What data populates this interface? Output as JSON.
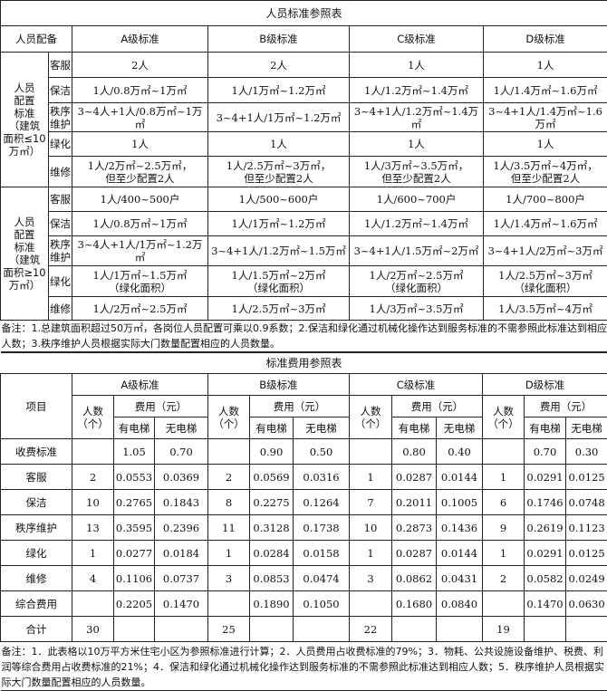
{
  "staff_table": {
    "title": "人员标准参照表",
    "header": [
      "人员配备",
      "A级标准",
      "B级标准",
      "C级标准",
      "D级标准"
    ],
    "groups": [
      {
        "label": "人员\n配置\n标准\n（建筑\n面积≤10\n万㎡）",
        "rows": [
          {
            "role": "客服",
            "values": [
              "2人",
              "2人",
              "1人",
              "1人"
            ]
          },
          {
            "role": "保洁",
            "values": [
              "1人/0.8万㎡~1万㎡",
              "1人/1万㎡~1.2万㎡",
              "1人/1.2万㎡~1.4万㎡",
              "1人/1.4万㎡~1.6万㎡"
            ]
          },
          {
            "role": "秩序\n维护",
            "values": [
              "3~4人+1人/0.8万㎡~1万㎡",
              "3~4+1人/1万㎡~1.2万㎡",
              "3~4+1人/1.2万㎡~1.4万㎡",
              "3~4+1人/1.4万㎡~1.6万㎡"
            ]
          },
          {
            "role": "绿化",
            "values": [
              "1人",
              "1人",
              "1人",
              "1人"
            ]
          },
          {
            "role": "维修",
            "values": [
              "1人/2万㎡~2.5万㎡，\n但至少配置2人",
              "1人/2.5万㎡~3万㎡，\n但至少配置2人",
              "1人/3万㎡~3.5万㎡，\n但至少配置2人",
              "1人/3.5万㎡~4万㎡，\n但至少配置2人"
            ]
          }
        ]
      },
      {
        "label": "人员\n配置\n标准\n（建筑\n面积≥10\n万㎡）",
        "rows": [
          {
            "role": "客服",
            "values": [
              "1人/400~500户",
              "1人/500~600户",
              "1人/600~700户",
              "1人/700~800户"
            ]
          },
          {
            "role": "保洁",
            "values": [
              "1人/0.8万㎡~1万㎡",
              "1人/1万㎡~1.2万㎡",
              "1人/1.2万㎡~1.4万㎡",
              "1人/1.4万㎡~1.6万㎡"
            ]
          },
          {
            "role": "秩序\n维护",
            "values": [
              "3~4人+1人/1万㎡~1.2万㎡",
              "3~4+1人/1.2万㎡~1.5万㎡",
              "3~4+1人/1.5万㎡~2万㎡",
              "3~4+1人/2万㎡~3万㎡"
            ]
          },
          {
            "role": "绿化",
            "values": [
              "1人/1万㎡~1.5万㎡\n（绿化面积）",
              "1人/1.5万㎡~2万㎡\n（绿化面积）",
              "1人/2万㎡~2.5万㎡\n（绿化面积）",
              "1人/2.5万㎡~3万㎡\n（绿化面积）"
            ]
          },
          {
            "role": "维修",
            "values": [
              "1人/2万㎡~2.5万㎡",
              "1人/2.5万㎡~3万㎡",
              "1人/3万㎡~3.5万㎡",
              "1人/3.5万㎡~4万㎡"
            ]
          }
        ]
      }
    ],
    "note": "备注：1.总建筑面积超过50万㎡，各岗位人员配置可乘以0.9系数；2.保洁和绿化通过机械化操作达到服务标准的不需参照此标准达到相应人数；3.秩序维护人员根据实际大门数量配置相应的人员数量。"
  },
  "fee_table": {
    "title": "标准费用参照表",
    "item_header": "项目",
    "grades": [
      "A级标准",
      "B级标准",
      "C级标准",
      "D级标准"
    ],
    "count_header": "人数\n（个）",
    "fee_header": "费用（元）",
    "sub_headers": [
      "有电梯",
      "无电梯"
    ],
    "rows": [
      {
        "item": "收费标准",
        "cells": [
          [
            "",
            "1.05",
            "0.70"
          ],
          [
            "",
            "0.90",
            "0.50"
          ],
          [
            "",
            "0.80",
            "0.40"
          ],
          [
            "",
            "0.70",
            "0.30"
          ]
        ]
      },
      {
        "item": "客服",
        "cells": [
          [
            "2",
            "0.0553",
            "0.0369"
          ],
          [
            "2",
            "0.0569",
            "0.0316"
          ],
          [
            "1",
            "0.0287",
            "0.0144"
          ],
          [
            "1",
            "0.0291",
            "0.0125"
          ]
        ]
      },
      {
        "item": "保洁",
        "cells": [
          [
            "10",
            "0.2765",
            "0.1843"
          ],
          [
            "8",
            "0.2275",
            "0.1264"
          ],
          [
            "7",
            "0.2011",
            "0.1005"
          ],
          [
            "6",
            "0.1746",
            "0.0748"
          ]
        ]
      },
      {
        "item": "秩序维护",
        "cells": [
          [
            "13",
            "0.3595",
            "0.2396"
          ],
          [
            "11",
            "0.3128",
            "0.1738"
          ],
          [
            "10",
            "0.2873",
            "0.1436"
          ],
          [
            "9",
            "0.2619",
            "0.1123"
          ]
        ]
      },
      {
        "item": "绿化",
        "cells": [
          [
            "1",
            "0.0277",
            "0.0184"
          ],
          [
            "1",
            "0.0284",
            "0.0158"
          ],
          [
            "1",
            "0.0287",
            "0.0144"
          ],
          [
            "1",
            "0.0291",
            "0.0125"
          ]
        ]
      },
      {
        "item": "维修",
        "cells": [
          [
            "4",
            "0.1106",
            "0.0737"
          ],
          [
            "3",
            "0.0853",
            "0.0474"
          ],
          [
            "3",
            "0.0862",
            "0.0431"
          ],
          [
            "2",
            "0.0582",
            "0.0249"
          ]
        ]
      },
      {
        "item": "综合费用",
        "cells": [
          [
            "",
            "0.2205",
            "0.1470"
          ],
          [
            "",
            "0.1890",
            "0.1050"
          ],
          [
            "",
            "0.1680",
            "0.0840"
          ],
          [
            "",
            "0.1470",
            "0.0630"
          ]
        ]
      },
      {
        "item": "合计",
        "cells": [
          [
            "30",
            "",
            ""
          ],
          [
            "25",
            "",
            ""
          ],
          [
            "22",
            "",
            ""
          ],
          [
            "19",
            "",
            ""
          ]
        ]
      }
    ],
    "note": "备注：1．此表格以10万平方米住宅小区为参照标准进行计算；2．人员费用占收费标准的79%；3．物耗、公共设施设备维护、税费、利润等综合费用占收费标准的21%；4．保洁和绿化通过机械化操作达到服务标准的不需参照此标准达到相应人数；5．秩序维护人员根据实际大门数量配置相应的人员数量。"
  }
}
